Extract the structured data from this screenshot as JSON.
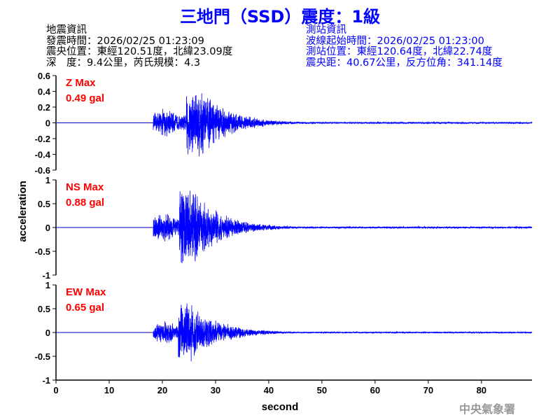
{
  "header": {
    "title": "三地門（SSD）震度：1級",
    "quake_info": {
      "heading": "地震資訊",
      "time": "發震時間：2026/02/25 01:23:09",
      "location": "震央位置：東經120.51度，北緯23.09度",
      "depth_magnitude": "深　度：9.4公里，芮氏規模：4.3"
    },
    "station_info": {
      "heading": "測站資訊",
      "start_time": "波線起始時間：2026/02/25 01:23:00",
      "location": "測站位置：東經120.64度，北緯22.74度",
      "distance": "震央距：40.67公里，反方位角：341.14度"
    }
  },
  "logo_text": "中央氣象署",
  "chart_data": {
    "type": "line",
    "xlabel": "second",
    "ylabel": "acceleration",
    "xlim": [
      0,
      89.5
    ],
    "xticks": [
      "0",
      "10",
      "20",
      "30",
      "40",
      "50",
      "60",
      "70",
      "80"
    ],
    "series_color": "#0000ff",
    "label_color": "#ff0000",
    "panels": [
      {
        "component": "Z",
        "label": "Z Max",
        "max_label": "0.49 gal",
        "max": 0.49,
        "ylim": [
          -0.6,
          0.6
        ],
        "yticks": [
          "0.6",
          "0.4",
          "0.2",
          "0",
          "-0.2",
          "-0.4",
          "-0.6"
        ],
        "arrival": 18.3,
        "peak_time": 26.5
      },
      {
        "component": "NS",
        "label": "NS Max",
        "max_label": "0.88 gal",
        "max": 0.88,
        "ylim": [
          -1,
          1
        ],
        "yticks": [
          "1",
          "0.5",
          "0",
          "-0.5",
          "-1"
        ],
        "arrival": 18.3,
        "peak_time": 25.2
      },
      {
        "component": "EW",
        "label": "EW Max",
        "max_label": "0.65 gal",
        "max": 0.65,
        "ylim": [
          -1,
          1
        ],
        "yticks": [
          "1",
          "0.5",
          "0",
          "-0.5",
          "-1"
        ],
        "arrival": 18.3,
        "peak_time": 25.0
      }
    ]
  }
}
